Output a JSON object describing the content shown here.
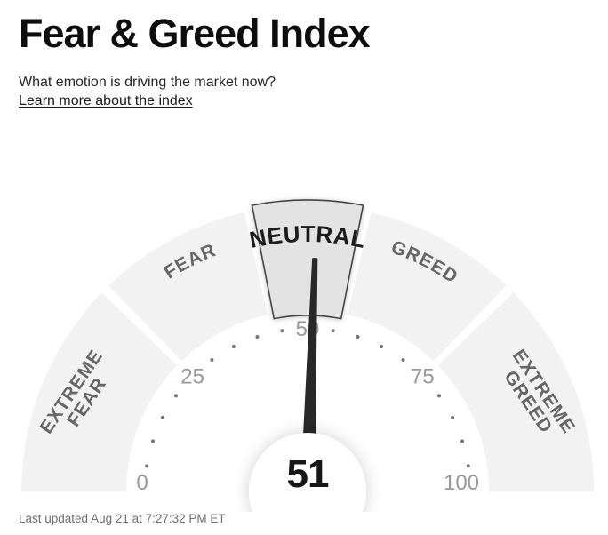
{
  "header": {
    "title": "Fear & Greed Index",
    "subtitle": "What emotion is driving the market now?",
    "link": "Learn more about the index"
  },
  "footer": {
    "last_updated": "Last updated Aug 21 at 7:27:32 PM ET"
  },
  "chart_data": {
    "type": "gauge",
    "title": "Fear & Greed Index",
    "value": 51,
    "value_label": "51",
    "min": 0,
    "max": 100,
    "units_to_degrees": 1.8,
    "tick_values": [
      0,
      25,
      50,
      75,
      100
    ],
    "tick_labels": [
      "0",
      "25",
      "50",
      "75",
      "100"
    ],
    "minor_tick_step": 5,
    "segments": [
      {
        "id": "extreme-fear",
        "label": "EXTREME FEAR",
        "lines": [
          "EXTREME",
          "FEAR"
        ],
        "from": 0,
        "to": 25,
        "active": false
      },
      {
        "id": "fear",
        "label": "FEAR",
        "lines": [
          "FEAR"
        ],
        "from": 25,
        "to": 45,
        "active": false
      },
      {
        "id": "neutral",
        "label": "NEUTRAL",
        "lines": [
          "NEUTRAL"
        ],
        "from": 45,
        "to": 55,
        "active": true
      },
      {
        "id": "greed",
        "label": "GREED",
        "lines": [
          "GREED"
        ],
        "from": 55,
        "to": 75,
        "active": false
      },
      {
        "id": "extreme-greed",
        "label": "EXTREME GREED",
        "lines": [
          "EXTREME",
          "GREED"
        ],
        "from": 75,
        "to": 100,
        "active": false
      }
    ],
    "colors": {
      "segment_fill": "#f2f2f2",
      "active_segment_fill": "#e3e3e3",
      "active_segment_stroke": "#454545",
      "segment_label": "#666666",
      "active_segment_label": "#1c1c1c",
      "tick_label": "#999999",
      "tick_dot": "#757575",
      "needle": "#282828",
      "value_text": "#161616",
      "center_circle": "#ffffff"
    }
  }
}
